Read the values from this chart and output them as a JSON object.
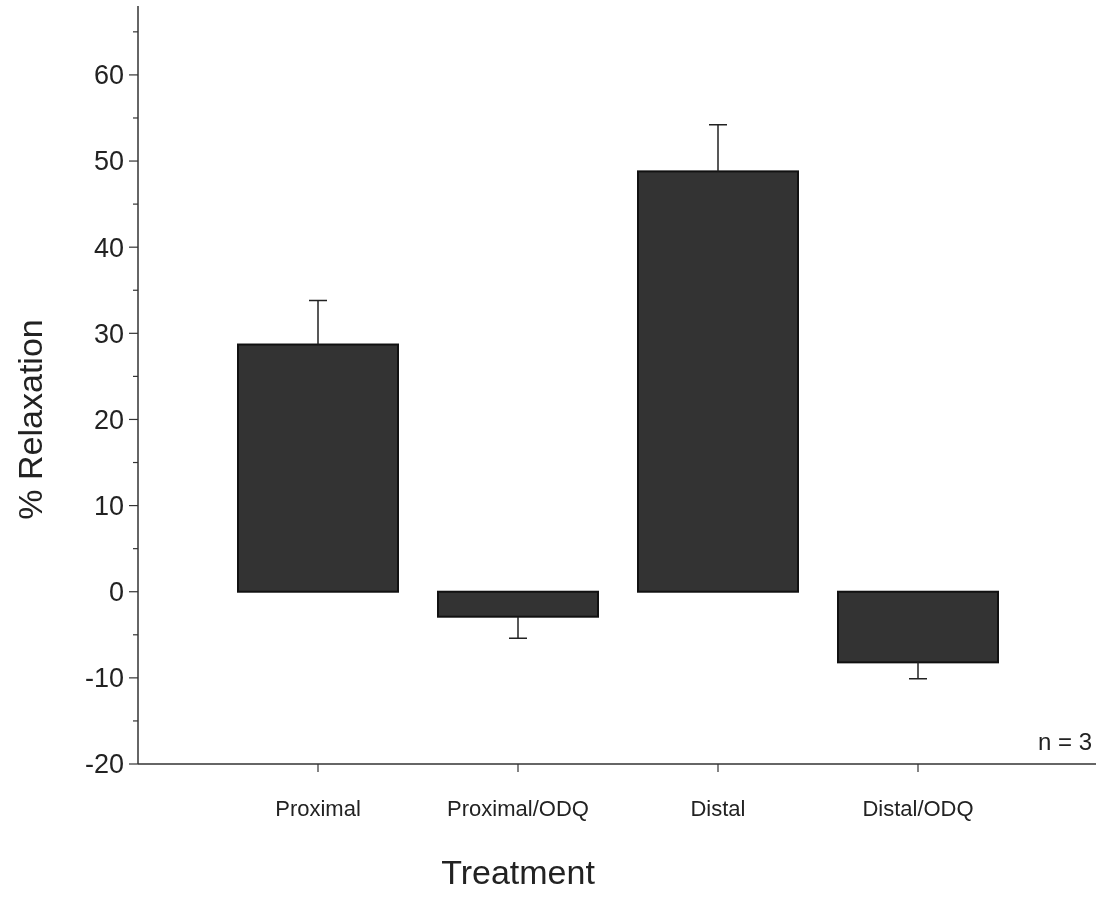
{
  "chart_data": {
    "type": "bar",
    "xlabel": "Treatment",
    "ylabel": "% Relaxation",
    "categories": [
      "Proximal",
      "Proximal/ODQ",
      "Distal",
      "Distal/ODQ"
    ],
    "values": [
      28.7,
      -2.9,
      48.8,
      -8.2
    ],
    "errors": [
      [
        28.7,
        33.8
      ],
      [
        -5.4,
        -2.9
      ],
      [
        48.8,
        54.2
      ],
      [
        -10.1,
        -8.2
      ]
    ],
    "color": "#333333",
    "ylim": [
      -20,
      68
    ],
    "yticks": [
      -20,
      {
        "value": -15,
        "label": null
      },
      -10,
      {
        "value": -5,
        "label": null
      },
      0,
      {
        "value": 5,
        "label": null
      },
      10,
      {
        "value": 15,
        "label": null
      },
      20,
      {
        "value": 25,
        "label": null
      },
      30,
      {
        "value": 35,
        "label": null
      },
      40,
      {
        "value": 45,
        "label": null
      },
      50,
      {
        "value": 55,
        "label": null
      },
      60,
      {
        "value": 65,
        "label": null
      }
    ],
    "annotations": [
      "n = 3"
    ]
  }
}
